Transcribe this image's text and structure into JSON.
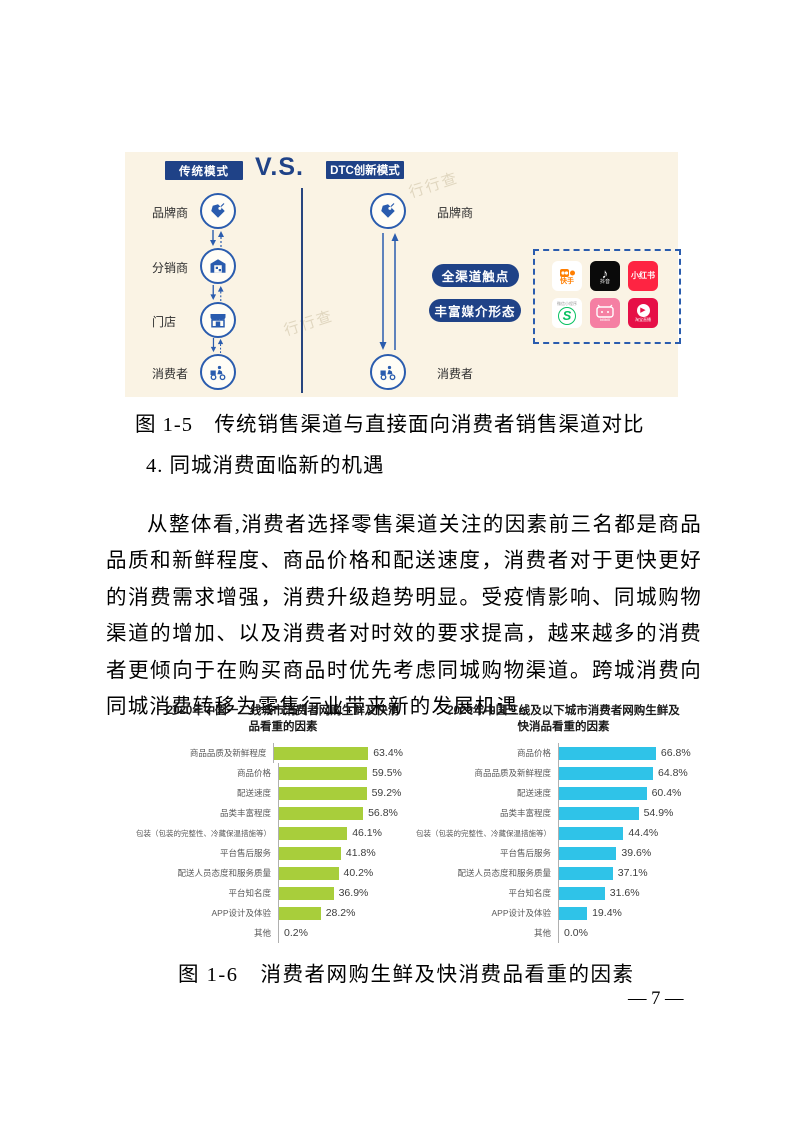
{
  "page": {
    "number": "— 7 —"
  },
  "figure5": {
    "caption": "图 1-5　传统销售渠道与直接面向消费者销售渠道对比",
    "background": "#faf3e4",
    "accent_navy": "#1f4287",
    "icon_blue": "#2a5cae",
    "left_header": "传统模式",
    "vs_label": "V.S.",
    "right_header": "DTC创新模式",
    "left_nodes": [
      {
        "label": "品牌商",
        "icon": "tag-icon"
      },
      {
        "label": "分销商",
        "icon": "warehouse-icon"
      },
      {
        "label": "门店",
        "icon": "storefront-icon"
      },
      {
        "label": "消费者",
        "icon": "delivery-scooter-icon"
      }
    ],
    "right_top_node": {
      "label": "品牌商",
      "icon": "tag-icon"
    },
    "right_bottom_node": {
      "label": "消费者",
      "icon": "delivery-scooter-icon"
    },
    "pills": [
      "全渠道触点",
      "丰富媒介形态"
    ],
    "apps": [
      {
        "name": "kuaishou",
        "label": "快手",
        "bg": "#ffffff",
        "fg": "#ff7e00"
      },
      {
        "name": "douyin",
        "label": "抖音",
        "bg": "#0a0a0a",
        "fg": "#ffffff"
      },
      {
        "name": "xiaohongshu",
        "label": "小红书",
        "bg": "#fe2442",
        "fg": "#ffffff"
      },
      {
        "name": "wechat-mini-program",
        "label": "微信小程序",
        "bg": "#ffffff",
        "fg": "#07c160"
      },
      {
        "name": "bilibili",
        "label": "bilibili",
        "bg": "#f57fa3",
        "fg": "#ffffff"
      },
      {
        "name": "taobao-live",
        "label": "淘宝直播",
        "bg": "#e60f47",
        "fg": "#ffffff"
      }
    ],
    "watermark": "行行查"
  },
  "section": {
    "heading": "4. 同城消费面临新的机遇"
  },
  "paragraph": "从整体看,消费者选择零售渠道关注的因素前三名都是商品品质和新鲜程度、商品价格和配送速度，消费者对于更快更好的消费需求增强，消费升级趋势明显。受疫情影响、同城购物渠道的增加、以及消费者对时效的要求提高，越来越多的消费者更倾向于在购买商品时优先考虑同城购物渠道。跨城消费向同城消费转移为零售行业带来新的发展机遇。",
  "figure6": {
    "caption": "图 1-6　消费者网购生鲜及快消费品看重的因素"
  },
  "chart_data": [
    {
      "type": "bar",
      "orientation": "horizontal",
      "title": "2020年中国一二线城市消费者网购生鲜及快消\n品看重的因素",
      "categories": [
        "商品品质及新鲜程度",
        "商品价格",
        "配送速度",
        "品类丰富程度",
        "包装（包装的完整性、冷藏保温措施等）",
        "平台售后服务",
        "配送人员态度和服务质量",
        "平台知名度",
        "APP设计及体验",
        "其他"
      ],
      "values": [
        63.4,
        59.5,
        59.2,
        56.8,
        46.1,
        41.8,
        40.2,
        36.9,
        28.2,
        0.2
      ],
      "bar_color": "#a8ce3b",
      "xlabel": "",
      "ylabel": "",
      "xlim": [
        0,
        70
      ],
      "grid": false,
      "legend": null,
      "value_label_format": "percent"
    },
    {
      "type": "bar",
      "orientation": "horizontal",
      "title": "2020年中国三线及以下城市消费者网购生鲜及\n快消品看重的因素",
      "categories": [
        "商品价格",
        "商品品质及新鲜程度",
        "配送速度",
        "品类丰富程度",
        "包装（包装的完整性、冷藏保温措施等）",
        "平台售后服务",
        "配送人员态度和服务质量",
        "平台知名度",
        "APP设计及体验",
        "其他"
      ],
      "values": [
        66.8,
        64.8,
        60.4,
        54.9,
        44.4,
        39.6,
        37.1,
        31.6,
        19.4,
        0.0
      ],
      "bar_color": "#2fc3e8",
      "xlabel": "",
      "ylabel": "",
      "xlim": [
        0,
        70
      ],
      "grid": false,
      "legend": null,
      "value_label_format": "percent"
    }
  ]
}
